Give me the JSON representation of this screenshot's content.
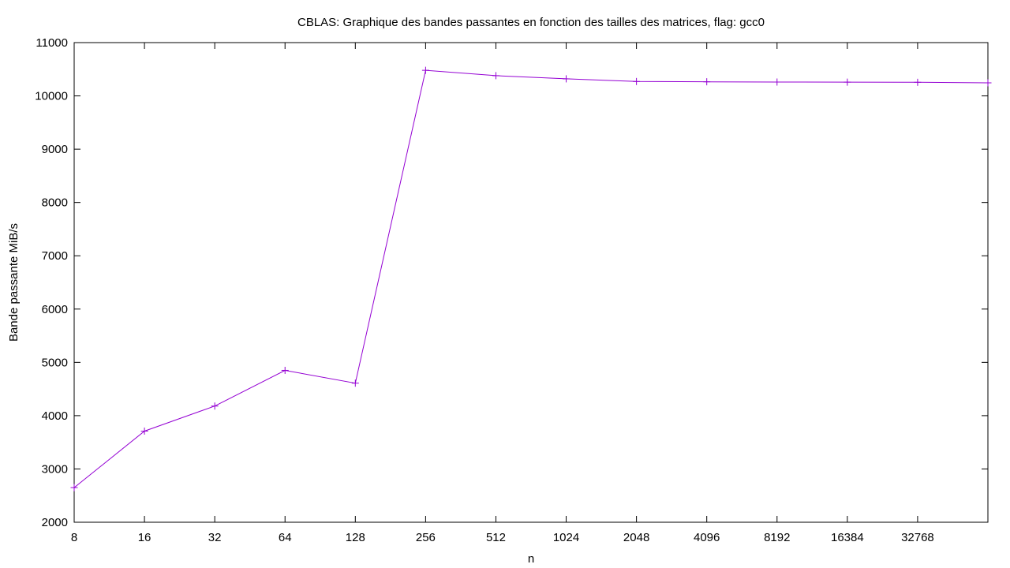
{
  "chart_data": {
    "type": "line",
    "title": "CBLAS: Graphique des bandes passantes en fonction des tailles des matrices, flag: gcc0",
    "xlabel": "n",
    "ylabel": "Bande passante MiB/s",
    "x_scale": "log2",
    "x_ticks": [
      "8",
      "16",
      "32",
      "64",
      "128",
      "256",
      "512",
      "1024",
      "2048",
      "4096",
      "8192",
      "16384",
      "32768"
    ],
    "xlim": [
      8,
      65536
    ],
    "ylim": [
      2000,
      11000
    ],
    "y_ticks": [
      2000,
      3000,
      4000,
      5000,
      6000,
      7000,
      8000,
      9000,
      10000,
      11000
    ],
    "grid": false,
    "legend": "none",
    "series": [
      {
        "color": "#9400d3",
        "marker": "plus",
        "x": [
          8,
          16,
          32,
          64,
          128,
          256,
          512,
          1024,
          2048,
          4096,
          8192,
          16384,
          32768,
          65536
        ],
        "y": [
          2650,
          3710,
          4180,
          4850,
          4610,
          10480,
          10380,
          10320,
          10270,
          10265,
          10260,
          10258,
          10255,
          10245
        ]
      }
    ]
  }
}
